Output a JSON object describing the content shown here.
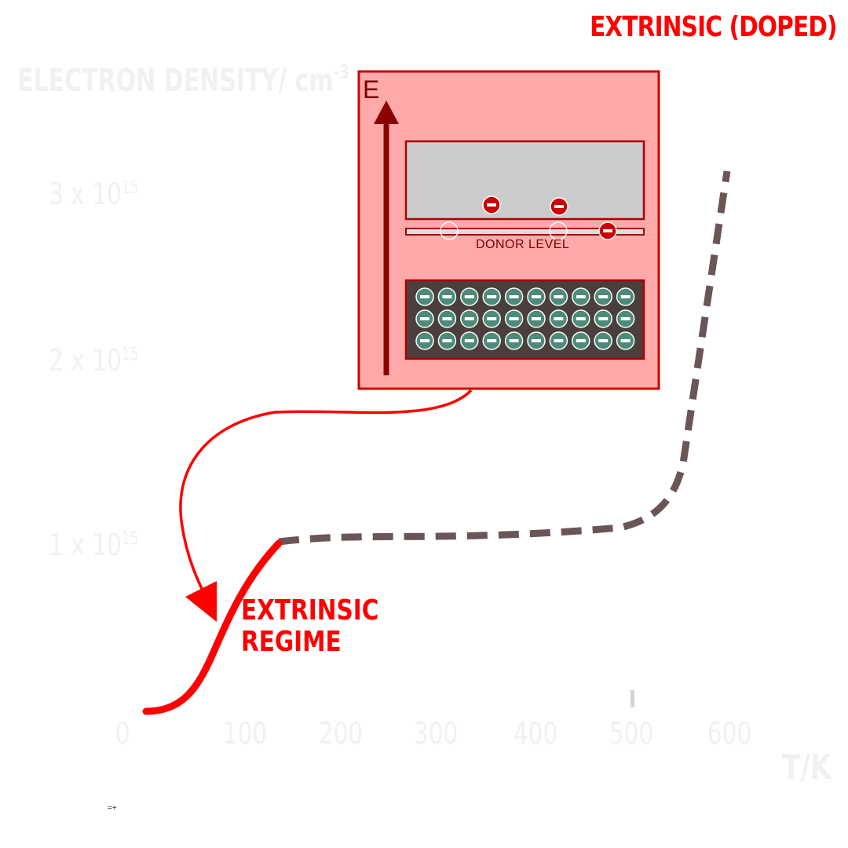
{
  "title": "EXTRINSIC (DOPED)",
  "y_axis": {
    "label": "ELECTRON DENSITY/ cm",
    "label_exponent": "-3",
    "ticks": [
      {
        "base": "3 x 10",
        "exp": "15"
      },
      {
        "base": "2 x 10",
        "exp": "15"
      },
      {
        "base": "1 x 10",
        "exp": "15"
      }
    ]
  },
  "x_axis": {
    "label": "T/K",
    "ticks": [
      "0",
      "100",
      "200",
      "300",
      "400",
      "500",
      "600"
    ]
  },
  "inset": {
    "energy_label": "E",
    "donor_label": "DONOR LEVEL",
    "colors": {
      "panel": "#ffaaaa",
      "border": "#cc0000",
      "conduction_band": "#cccccc",
      "valence_band": "#4a3f3d",
      "electron_conduction": "#cc0000",
      "electron_valence": "#4e8a7a",
      "arrow": "#8b0000"
    }
  },
  "regime_label": "EXTRINSIC REGIME",
  "curve_colors": {
    "highlight": "#ff0000",
    "rest": "#6b5657",
    "pointer": "#ff0000"
  },
  "footnote": "=+"
}
